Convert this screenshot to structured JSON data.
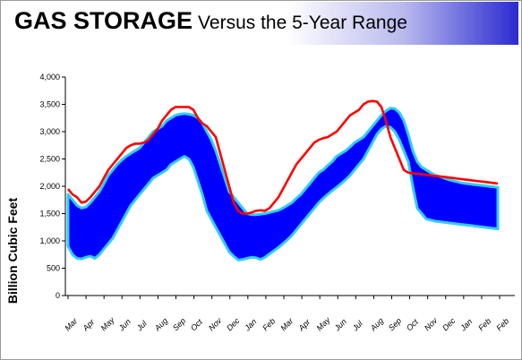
{
  "header": {
    "title_main": "GAS STORAGE",
    "title_sub": "Versus the 5-Year Range"
  },
  "colors": {
    "band_fill": "#0000ff",
    "band_edge": "#33ccee",
    "current_line": "#ff0000"
  },
  "chart_data": {
    "type": "area",
    "title": "GAS STORAGE Versus the 5-Year Range",
    "ylabel": "Billion Cubic Feet",
    "xlabel": "",
    "ylim": [
      0,
      4000
    ],
    "yticks": [
      "0",
      "500",
      "1,000",
      "1,500",
      "2,000",
      "2,500",
      "3,000",
      "3,500",
      "4,000"
    ],
    "ytick_values": [
      0,
      500,
      1000,
      1500,
      2000,
      2500,
      3000,
      3500,
      4000
    ],
    "grid": false,
    "legend": "none",
    "x_tick_labels": [
      "Mar",
      "Apr",
      "May",
      "Jun",
      "Jul",
      "Aug",
      "Sep",
      "Oct",
      "Nov",
      "Dec",
      "Jan",
      "Feb",
      "Mar",
      "Apr",
      "May",
      "Jun",
      "Jul",
      "Aug",
      "Sep",
      "Oct",
      "Nov",
      "Dec",
      "Jan",
      "Feb",
      "Feb"
    ],
    "x": [
      0,
      0.25,
      0.5,
      0.75,
      1,
      1.25,
      1.5,
      1.75,
      2,
      2.25,
      2.5,
      2.75,
      3,
      3.25,
      3.5,
      3.75,
      4,
      4.25,
      4.5,
      4.75,
      5,
      5.25,
      5.5,
      5.75,
      6,
      6.25,
      6.5,
      6.75,
      7,
      7.25,
      7.5,
      7.75,
      8,
      8.25,
      8.5,
      8.75,
      9,
      9.25,
      9.5,
      9.75,
      10,
      10.25,
      10.5,
      10.75,
      11,
      11.25,
      11.5,
      11.75,
      12,
      12.25,
      12.5,
      12.75,
      13,
      13.25,
      13.5,
      13.75,
      14,
      14.25,
      14.5,
      14.75,
      15,
      15.25,
      15.5,
      15.75,
      16,
      16.25,
      16.5,
      16.75,
      17,
      17.25,
      17.5,
      17.75,
      18,
      18.25,
      18.5,
      18.75,
      19,
      19.25,
      19.5,
      19.75,
      20,
      20.25,
      20.5,
      20.75,
      21,
      21.25,
      21.5,
      21.75,
      22,
      22.25,
      22.5,
      22.75,
      23,
      23.25,
      23.5,
      23.75,
      24
    ],
    "series": [
      {
        "name": "",
        "kind": "range_max",
        "values": [
          1850,
          1750,
          1650,
          1600,
          1620,
          1700,
          1800,
          1900,
          2050,
          2200,
          2300,
          2400,
          2480,
          2550,
          2600,
          2650,
          2700,
          2800,
          2900,
          3000,
          3050,
          3100,
          3200,
          3250,
          3300,
          3320,
          3330,
          3320,
          3300,
          3250,
          3150,
          3000,
          2850,
          2650,
          2400,
          2150,
          1900,
          1800,
          1700,
          1600,
          1500,
          1480,
          1480,
          1490,
          1500,
          1520,
          1540,
          1560,
          1600,
          1650,
          1700,
          1780,
          1850,
          1950,
          2050,
          2150,
          2250,
          2300,
          2380,
          2450,
          2550,
          2600,
          2650,
          2720,
          2800,
          2850,
          2900,
          3000,
          3100,
          3200,
          3300,
          3380,
          3430,
          3420,
          3350,
          3200,
          2950,
          2650,
          2450,
          2350,
          2300,
          2250,
          2200,
          2180,
          2150,
          2120,
          2100,
          2080,
          2060,
          2050,
          2040,
          2030,
          2020,
          2010,
          2000,
          1990,
          1980
        ]
      },
      {
        "name": "",
        "kind": "range_min",
        "values": [
          900,
          750,
          680,
          670,
          700,
          720,
          680,
          750,
          850,
          950,
          1050,
          1200,
          1350,
          1500,
          1650,
          1750,
          1850,
          1950,
          2050,
          2150,
          2200,
          2250,
          2300,
          2400,
          2450,
          2500,
          2550,
          2500,
          2350,
          2100,
          1850,
          1550,
          1400,
          1250,
          1100,
          950,
          800,
          720,
          650,
          660,
          680,
          700,
          690,
          660,
          700,
          760,
          820,
          880,
          950,
          1020,
          1100,
          1200,
          1300,
          1400,
          1500,
          1600,
          1700,
          1780,
          1850,
          1920,
          1980,
          2050,
          2120,
          2200,
          2300,
          2400,
          2500,
          2650,
          2800,
          2950,
          3050,
          3100,
          3080,
          3000,
          2850,
          2650,
          2450,
          2000,
          1600,
          1500,
          1400,
          1380,
          1360,
          1350,
          1340,
          1330,
          1320,
          1310,
          1300,
          1290,
          1280,
          1270,
          1260,
          1250,
          1240,
          1230,
          1220
        ]
      },
      {
        "name": "",
        "kind": "current",
        "values": [
          1950,
          1850,
          1800,
          1700,
          1720,
          1800,
          1900,
          2000,
          2150,
          2300,
          2400,
          2500,
          2600,
          2700,
          2750,
          2780,
          2780,
          2800,
          2850,
          2950,
          3050,
          3200,
          3300,
          3400,
          3450,
          3450,
          3450,
          3450,
          3400,
          3250,
          3150,
          3100,
          3000,
          2900,
          2600,
          2300,
          2000,
          1700,
          1550,
          1500,
          1500,
          1520,
          1550,
          1560,
          1550,
          1600,
          1700,
          1800,
          1950,
          2100,
          2250,
          2400,
          2500,
          2600,
          2700,
          2800,
          2850,
          2880,
          2900,
          2950,
          3000,
          3100,
          3200,
          3300,
          3350,
          3400,
          3500,
          3550,
          3560,
          3550,
          3450,
          3200,
          2900,
          2700,
          2500,
          2300,
          2250,
          2240,
          2230,
          2220,
          2210,
          2200,
          2190,
          2180,
          2170,
          2160,
          2150,
          2140,
          2130,
          2120,
          2110,
          2100,
          2090,
          2080,
          2070,
          2060,
          2050
        ]
      }
    ]
  }
}
